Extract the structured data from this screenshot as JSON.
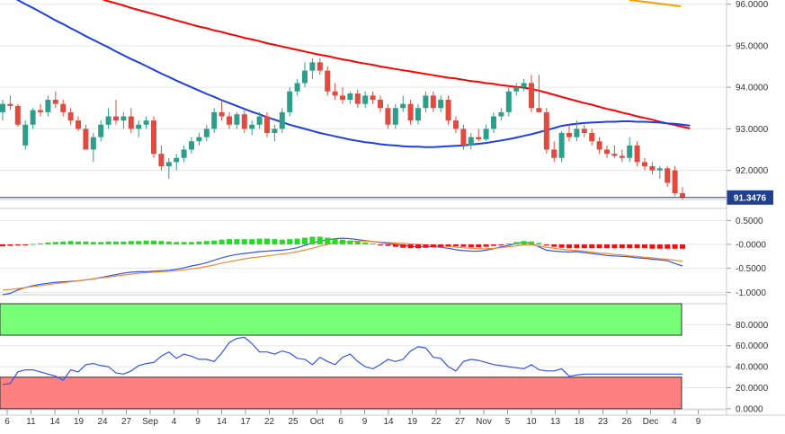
{
  "chart_data": [
    {
      "type": "candlestick",
      "panel": "price",
      "ylim": [
        91.3,
        96.1
      ],
      "yticks": [
        "96.0000",
        "95.0000",
        "94.0000",
        "93.0000",
        "92.0000"
      ],
      "last_price_label": "91.3476",
      "last_price": 91.3476,
      "ohlc": [
        [
          93.4,
          93.7,
          93.2,
          93.6
        ],
        [
          93.6,
          93.8,
          93.45,
          93.55
        ],
        [
          93.55,
          93.6,
          93.05,
          93.1
        ],
        [
          92.6,
          93.2,
          92.5,
          93.1
        ],
        [
          93.1,
          93.5,
          93.0,
          93.45
        ],
        [
          93.45,
          93.6,
          93.3,
          93.4
        ],
        [
          93.4,
          93.8,
          93.3,
          93.7
        ],
        [
          93.7,
          93.9,
          93.5,
          93.6
        ],
        [
          93.6,
          93.7,
          93.3,
          93.4
        ],
        [
          93.4,
          93.5,
          93.1,
          93.2
        ],
        [
          93.2,
          93.3,
          92.95,
          93.0
        ],
        [
          93.0,
          93.1,
          92.5,
          92.5
        ],
        [
          92.5,
          92.9,
          92.2,
          92.8
        ],
        [
          92.8,
          93.2,
          92.7,
          93.1
        ],
        [
          93.1,
          93.5,
          93.0,
          93.3
        ],
        [
          93.3,
          93.7,
          93.1,
          93.2
        ],
        [
          93.2,
          93.4,
          93.0,
          93.3
        ],
        [
          93.3,
          93.5,
          92.9,
          93.0
        ],
        [
          93.0,
          93.2,
          92.8,
          93.1
        ],
        [
          93.1,
          93.3,
          93.0,
          93.2
        ],
        [
          93.2,
          93.3,
          92.3,
          92.4
        ],
        [
          92.4,
          92.6,
          92.0,
          92.1
        ],
        [
          92.1,
          92.3,
          91.8,
          92.2
        ],
        [
          92.2,
          92.4,
          92.0,
          92.3
        ],
        [
          92.3,
          92.6,
          92.2,
          92.5
        ],
        [
          92.5,
          92.8,
          92.4,
          92.7
        ],
        [
          92.7,
          92.9,
          92.6,
          92.8
        ],
        [
          92.8,
          93.1,
          92.7,
          93.0
        ],
        [
          93.0,
          93.5,
          92.9,
          93.4
        ],
        [
          93.4,
          93.7,
          93.2,
          93.3
        ],
        [
          93.3,
          93.4,
          93.0,
          93.1
        ],
        [
          93.1,
          93.4,
          93.0,
          93.35
        ],
        [
          93.35,
          93.45,
          92.9,
          93.0
        ],
        [
          93.0,
          93.2,
          92.85,
          93.1
        ],
        [
          93.1,
          93.4,
          93.0,
          93.3
        ],
        [
          93.3,
          93.4,
          92.8,
          92.9
        ],
        [
          92.9,
          93.1,
          92.7,
          93.0
        ],
        [
          93.0,
          93.5,
          92.9,
          93.4
        ],
        [
          93.4,
          94.0,
          93.3,
          93.9
        ],
        [
          93.9,
          94.2,
          93.8,
          94.1
        ],
        [
          94.1,
          94.6,
          94.0,
          94.4
        ],
        [
          94.4,
          94.7,
          94.2,
          94.6
        ],
        [
          94.6,
          94.7,
          94.3,
          94.4
        ],
        [
          94.4,
          94.5,
          93.8,
          93.9
        ],
        [
          93.9,
          94.1,
          93.7,
          93.8
        ],
        [
          93.8,
          94.0,
          93.6,
          93.7
        ],
        [
          93.7,
          93.9,
          93.6,
          93.85
        ],
        [
          93.85,
          93.95,
          93.5,
          93.6
        ],
        [
          93.6,
          93.9,
          93.5,
          93.8
        ],
        [
          93.8,
          93.9,
          93.6,
          93.7
        ],
        [
          93.7,
          93.8,
          93.4,
          93.5
        ],
        [
          93.5,
          93.6,
          93.0,
          93.1
        ],
        [
          93.1,
          93.6,
          93.0,
          93.5
        ],
        [
          93.5,
          93.8,
          93.4,
          93.6
        ],
        [
          93.6,
          93.7,
          93.1,
          93.2
        ],
        [
          93.2,
          93.6,
          93.1,
          93.5
        ],
        [
          93.5,
          93.9,
          93.4,
          93.8
        ],
        [
          93.8,
          93.9,
          93.4,
          93.5
        ],
        [
          93.5,
          93.8,
          93.4,
          93.7
        ],
        [
          93.7,
          93.8,
          93.1,
          93.2
        ],
        [
          93.2,
          93.3,
          92.9,
          93.0
        ],
        [
          93.0,
          93.1,
          92.5,
          92.6
        ],
        [
          92.6,
          92.9,
          92.5,
          92.8
        ],
        [
          92.8,
          93.0,
          92.7,
          92.75
        ],
        [
          92.75,
          93.1,
          92.7,
          93.0
        ],
        [
          93.0,
          93.4,
          92.9,
          93.3
        ],
        [
          93.3,
          93.5,
          93.2,
          93.4
        ],
        [
          93.4,
          94.0,
          93.3,
          93.9
        ],
        [
          93.9,
          94.1,
          93.8,
          94.0
        ],
        [
          94.0,
          94.2,
          93.9,
          94.1
        ],
        [
          94.1,
          94.3,
          93.4,
          93.5
        ],
        [
          93.5,
          94.3,
          93.4,
          93.4
        ],
        [
          93.4,
          93.5,
          92.4,
          92.5
        ],
        [
          92.5,
          92.7,
          92.2,
          92.3
        ],
        [
          92.3,
          92.95,
          92.2,
          92.9
        ],
        [
          92.9,
          93.1,
          92.7,
          92.8
        ],
        [
          92.8,
          93.2,
          92.7,
          93.0
        ],
        [
          93.0,
          93.1,
          92.8,
          92.9
        ],
        [
          92.9,
          93.0,
          92.6,
          92.7
        ],
        [
          92.7,
          92.8,
          92.4,
          92.5
        ],
        [
          92.5,
          92.6,
          92.3,
          92.4
        ],
        [
          92.4,
          92.6,
          92.3,
          92.35
        ],
        [
          92.35,
          92.5,
          92.2,
          92.3
        ],
        [
          92.3,
          92.8,
          92.2,
          92.6
        ],
        [
          92.6,
          92.7,
          92.1,
          92.2
        ],
        [
          92.2,
          92.3,
          92.0,
          92.1
        ],
        [
          92.1,
          92.2,
          91.9,
          92.0
        ],
        [
          92.0,
          92.1,
          91.8,
          92.05
        ],
        [
          92.05,
          92.1,
          91.6,
          91.7
        ],
        [
          92.0,
          92.1,
          91.4,
          91.45
        ],
        [
          91.45,
          91.6,
          91.3,
          91.35
        ]
      ],
      "moving_averages": [
        {
          "color": "#ff0000",
          "values": [
            96.9,
            96.84,
            96.77,
            96.71,
            96.65,
            96.59,
            96.53,
            96.47,
            96.41,
            96.35,
            96.3,
            96.24,
            96.18,
            96.13,
            96.07,
            96.02,
            95.97,
            95.91,
            95.86,
            95.81,
            95.76,
            95.71,
            95.66,
            95.61,
            95.56,
            95.51,
            95.46,
            95.42,
            95.37,
            95.33,
            95.28,
            95.24,
            95.19,
            95.15,
            95.11,
            95.06,
            95.02,
            94.98,
            94.94,
            94.9,
            94.86,
            94.82,
            94.78,
            94.75,
            94.71,
            94.67,
            94.64,
            94.6,
            94.57,
            94.54,
            94.5,
            94.47,
            94.44,
            94.41,
            94.38,
            94.35,
            94.32,
            94.29,
            94.26,
            94.23,
            94.21,
            94.18,
            94.15,
            94.13,
            94.1,
            94.08,
            94.05,
            94.03,
            94.01,
            93.99,
            93.96,
            93.92,
            93.87,
            93.82,
            93.77,
            93.72,
            93.67,
            93.62,
            93.58,
            93.53,
            93.48,
            93.44,
            93.39,
            93.35,
            93.3,
            93.26,
            93.22,
            93.17,
            93.13,
            93.09,
            93.05,
            93.01
          ]
        },
        {
          "color": "#1f3fe0",
          "values": [
            96.3,
            96.2,
            96.1,
            96.0,
            95.91,
            95.81,
            95.71,
            95.61,
            95.52,
            95.42,
            95.33,
            95.23,
            95.14,
            95.05,
            94.96,
            94.86,
            94.77,
            94.68,
            94.6,
            94.51,
            94.42,
            94.33,
            94.25,
            94.16,
            94.08,
            94.0,
            93.92,
            93.84,
            93.77,
            93.69,
            93.62,
            93.55,
            93.48,
            93.41,
            93.35,
            93.28,
            93.22,
            93.16,
            93.1,
            93.05,
            93.0,
            92.95,
            92.9,
            92.86,
            92.82,
            92.78,
            92.74,
            92.71,
            92.68,
            92.66,
            92.63,
            92.61,
            92.6,
            92.58,
            92.57,
            92.57,
            92.56,
            92.56,
            92.57,
            92.58,
            92.59,
            92.6,
            92.62,
            92.64,
            92.66,
            92.69,
            92.72,
            92.75,
            92.79,
            92.83,
            92.87,
            92.92,
            92.97,
            93.02,
            93.07,
            93.1,
            93.12,
            93.14,
            93.15,
            93.16,
            93.17,
            93.17,
            93.18,
            93.18,
            93.17,
            93.17,
            93.16,
            93.15,
            93.13,
            93.12,
            93.1,
            93.08
          ]
        },
        {
          "color": "#f5a000",
          "values": []
        }
      ]
    },
    {
      "type": "histogram_lines",
      "panel": "macd",
      "ylim": [
        -1.05,
        0.75
      ],
      "yticks": [
        "0.5000",
        "-0.0000",
        "-0.5000",
        "-1.0000"
      ],
      "histogram": [
        -0.04,
        -0.03,
        -0.02,
        -0.01,
        0.01,
        0.02,
        0.04,
        0.05,
        0.06,
        0.07,
        0.06,
        0.06,
        0.05,
        0.05,
        0.06,
        0.06,
        0.06,
        0.07,
        0.07,
        0.08,
        0.08,
        0.07,
        0.06,
        0.05,
        0.05,
        0.05,
        0.06,
        0.07,
        0.08,
        0.1,
        0.11,
        0.11,
        0.11,
        0.11,
        0.12,
        0.12,
        0.11,
        0.1,
        0.11,
        0.12,
        0.14,
        0.16,
        0.16,
        0.14,
        0.12,
        0.1,
        0.08,
        0.06,
        0.04,
        0.02,
        -0.01,
        -0.03,
        -0.05,
        -0.07,
        -0.08,
        -0.08,
        -0.07,
        -0.06,
        -0.05,
        -0.04,
        -0.04,
        -0.05,
        -0.06,
        -0.06,
        -0.05,
        -0.03,
        -0.01,
        0.02,
        0.05,
        0.07,
        0.06,
        0.03,
        -0.02,
        -0.05,
        -0.07,
        -0.08,
        -0.08,
        -0.08,
        -0.08,
        -0.08,
        -0.08,
        -0.08,
        -0.08,
        -0.08,
        -0.08,
        -0.08,
        -0.09,
        -0.09,
        -0.09,
        -0.09,
        -0.09
      ],
      "series": [
        {
          "color": "#3355ee",
          "values": [
            -1.05,
            -1.02,
            -0.95,
            -0.9,
            -0.86,
            -0.83,
            -0.81,
            -0.79,
            -0.78,
            -0.77,
            -0.76,
            -0.74,
            -0.72,
            -0.69,
            -0.66,
            -0.63,
            -0.6,
            -0.58,
            -0.57,
            -0.57,
            -0.56,
            -0.55,
            -0.54,
            -0.52,
            -0.49,
            -0.45,
            -0.42,
            -0.38,
            -0.33,
            -0.28,
            -0.24,
            -0.21,
            -0.19,
            -0.17,
            -0.15,
            -0.14,
            -0.13,
            -0.12,
            -0.1,
            -0.07,
            -0.02,
            0.03,
            0.07,
            0.1,
            0.12,
            0.13,
            0.12,
            0.1,
            0.08,
            0.06,
            0.04,
            0.02,
            0.0,
            -0.02,
            -0.04,
            -0.05,
            -0.05,
            -0.05,
            -0.06,
            -0.08,
            -0.11,
            -0.13,
            -0.14,
            -0.14,
            -0.12,
            -0.09,
            -0.05,
            -0.02,
            0.02,
            0.05,
            0.02,
            -0.05,
            -0.12,
            -0.14,
            -0.15,
            -0.16,
            -0.15,
            -0.17,
            -0.19,
            -0.21,
            -0.23,
            -0.24,
            -0.25,
            -0.26,
            -0.28,
            -0.29,
            -0.31,
            -0.32,
            -0.34,
            -0.4,
            -0.45
          ]
        },
        {
          "color": "#f08a30",
          "values": [
            -0.95,
            -0.94,
            -0.92,
            -0.9,
            -0.88,
            -0.86,
            -0.84,
            -0.82,
            -0.8,
            -0.78,
            -0.76,
            -0.74,
            -0.72,
            -0.7,
            -0.68,
            -0.66,
            -0.64,
            -0.62,
            -0.6,
            -0.59,
            -0.58,
            -0.57,
            -0.56,
            -0.55,
            -0.53,
            -0.51,
            -0.49,
            -0.46,
            -0.43,
            -0.39,
            -0.36,
            -0.33,
            -0.3,
            -0.28,
            -0.26,
            -0.24,
            -0.22,
            -0.2,
            -0.18,
            -0.15,
            -0.12,
            -0.08,
            -0.04,
            0.0,
            0.03,
            0.05,
            0.06,
            0.07,
            0.07,
            0.06,
            0.05,
            0.04,
            0.03,
            0.02,
            0.01,
            0.0,
            -0.01,
            -0.02,
            -0.03,
            -0.04,
            -0.06,
            -0.07,
            -0.08,
            -0.09,
            -0.09,
            -0.08,
            -0.07,
            -0.05,
            -0.03,
            -0.01,
            -0.01,
            -0.03,
            -0.06,
            -0.08,
            -0.1,
            -0.12,
            -0.13,
            -0.14,
            -0.16,
            -0.18,
            -0.19,
            -0.21,
            -0.22,
            -0.24,
            -0.25,
            -0.27,
            -0.28,
            -0.3,
            -0.31,
            -0.33,
            -0.35
          ]
        }
      ]
    },
    {
      "type": "line",
      "panel": "oscillator",
      "ylim": [
        0,
        100
      ],
      "yticks": [
        "80.0000",
        "60.0000",
        "40.0000",
        "20.0000",
        "0.0000"
      ],
      "upper_zone": [
        70,
        100
      ],
      "lower_zone": [
        0,
        30
      ],
      "series": [
        {
          "color": "#3355ee",
          "values": [
            23,
            24,
            35,
            37,
            37,
            35,
            33,
            31,
            27,
            37,
            35,
            42,
            43,
            41,
            40,
            34,
            33,
            36,
            41,
            43,
            44,
            50,
            54,
            48,
            52,
            50,
            47,
            47,
            45,
            53,
            63,
            67,
            68,
            62,
            54,
            54,
            52,
            55,
            53,
            48,
            47,
            42,
            49,
            45,
            42,
            49,
            52,
            45,
            40,
            38,
            42,
            47,
            45,
            47,
            55,
            59,
            58,
            49,
            48,
            40,
            36,
            45,
            47,
            46,
            44,
            42,
            41,
            40,
            39,
            38,
            42,
            37,
            36,
            36,
            38,
            31,
            32,
            33,
            33,
            33,
            33,
            33,
            33,
            33,
            33,
            33,
            33,
            33,
            33,
            33,
            33
          ]
        }
      ]
    },
    {
      "type": "axis",
      "panel": "time",
      "x_labels": [
        "6",
        "11",
        "14",
        "19",
        "24",
        "27",
        "Sep",
        "4",
        "9",
        "14",
        "17",
        "22",
        "25",
        "Oct",
        "6",
        "9",
        "14",
        "19",
        "22",
        "27",
        "Nov",
        "5",
        "10",
        "13",
        "18",
        "23",
        "26",
        "Dec",
        "4",
        "9"
      ]
    }
  ]
}
